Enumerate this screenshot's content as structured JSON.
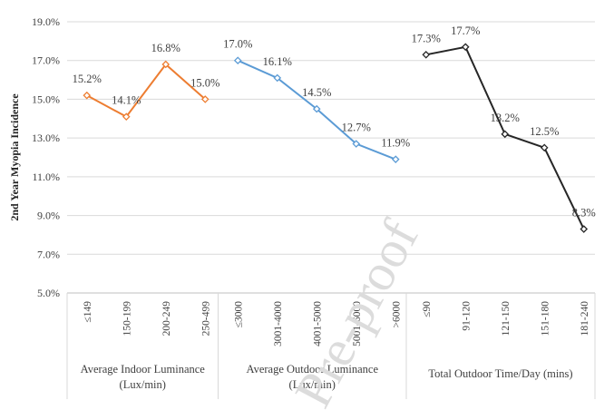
{
  "chart_data": {
    "type": "line",
    "title": "",
    "ylabel": "2nd Year Myopia Incidence",
    "ylim": [
      5,
      19
    ],
    "yticks": [
      "5.0%",
      "7.0%",
      "9.0%",
      "11.0%",
      "13.0%",
      "15.0%",
      "17.0%",
      "19.0%"
    ],
    "ytick_values": [
      5,
      7,
      9,
      11,
      13,
      15,
      17,
      19
    ],
    "grid": true,
    "groups": [
      {
        "name": "Average Indoor Luminance",
        "name2": "(Lux/min)",
        "color": "#ED7D31",
        "categories": [
          "≤149",
          "150-199",
          "200-249",
          "250-499"
        ],
        "values": [
          15.2,
          14.1,
          16.8,
          15.0
        ],
        "labels": [
          "15.2%",
          "14.1%",
          "16.8%",
          "15.0%"
        ]
      },
      {
        "name": "Average Outdoor Luminance",
        "name2": "(Lux/min)",
        "color": "#5B9BD5",
        "categories": [
          "≤3000",
          "3001-4000",
          "4001-5000",
          "5001-6000",
          ">6000"
        ],
        "values": [
          17.0,
          16.1,
          14.5,
          12.7,
          11.9
        ],
        "labels": [
          "17.0%",
          "16.1%",
          "14.5%",
          "12.7%",
          "11.9%"
        ]
      },
      {
        "name": "Total Outdoor Time/Day (mins)",
        "name2": "",
        "color": "#262626",
        "categories": [
          "≤90",
          "91-120",
          "121-150",
          "151-180",
          "181-240"
        ],
        "values": [
          17.3,
          17.7,
          13.2,
          12.5,
          8.3
        ],
        "labels": [
          "17.3%",
          "17.7%",
          "13.2%",
          "12.5%",
          "8.3%"
        ]
      }
    ]
  },
  "watermark": "Pre-proof"
}
